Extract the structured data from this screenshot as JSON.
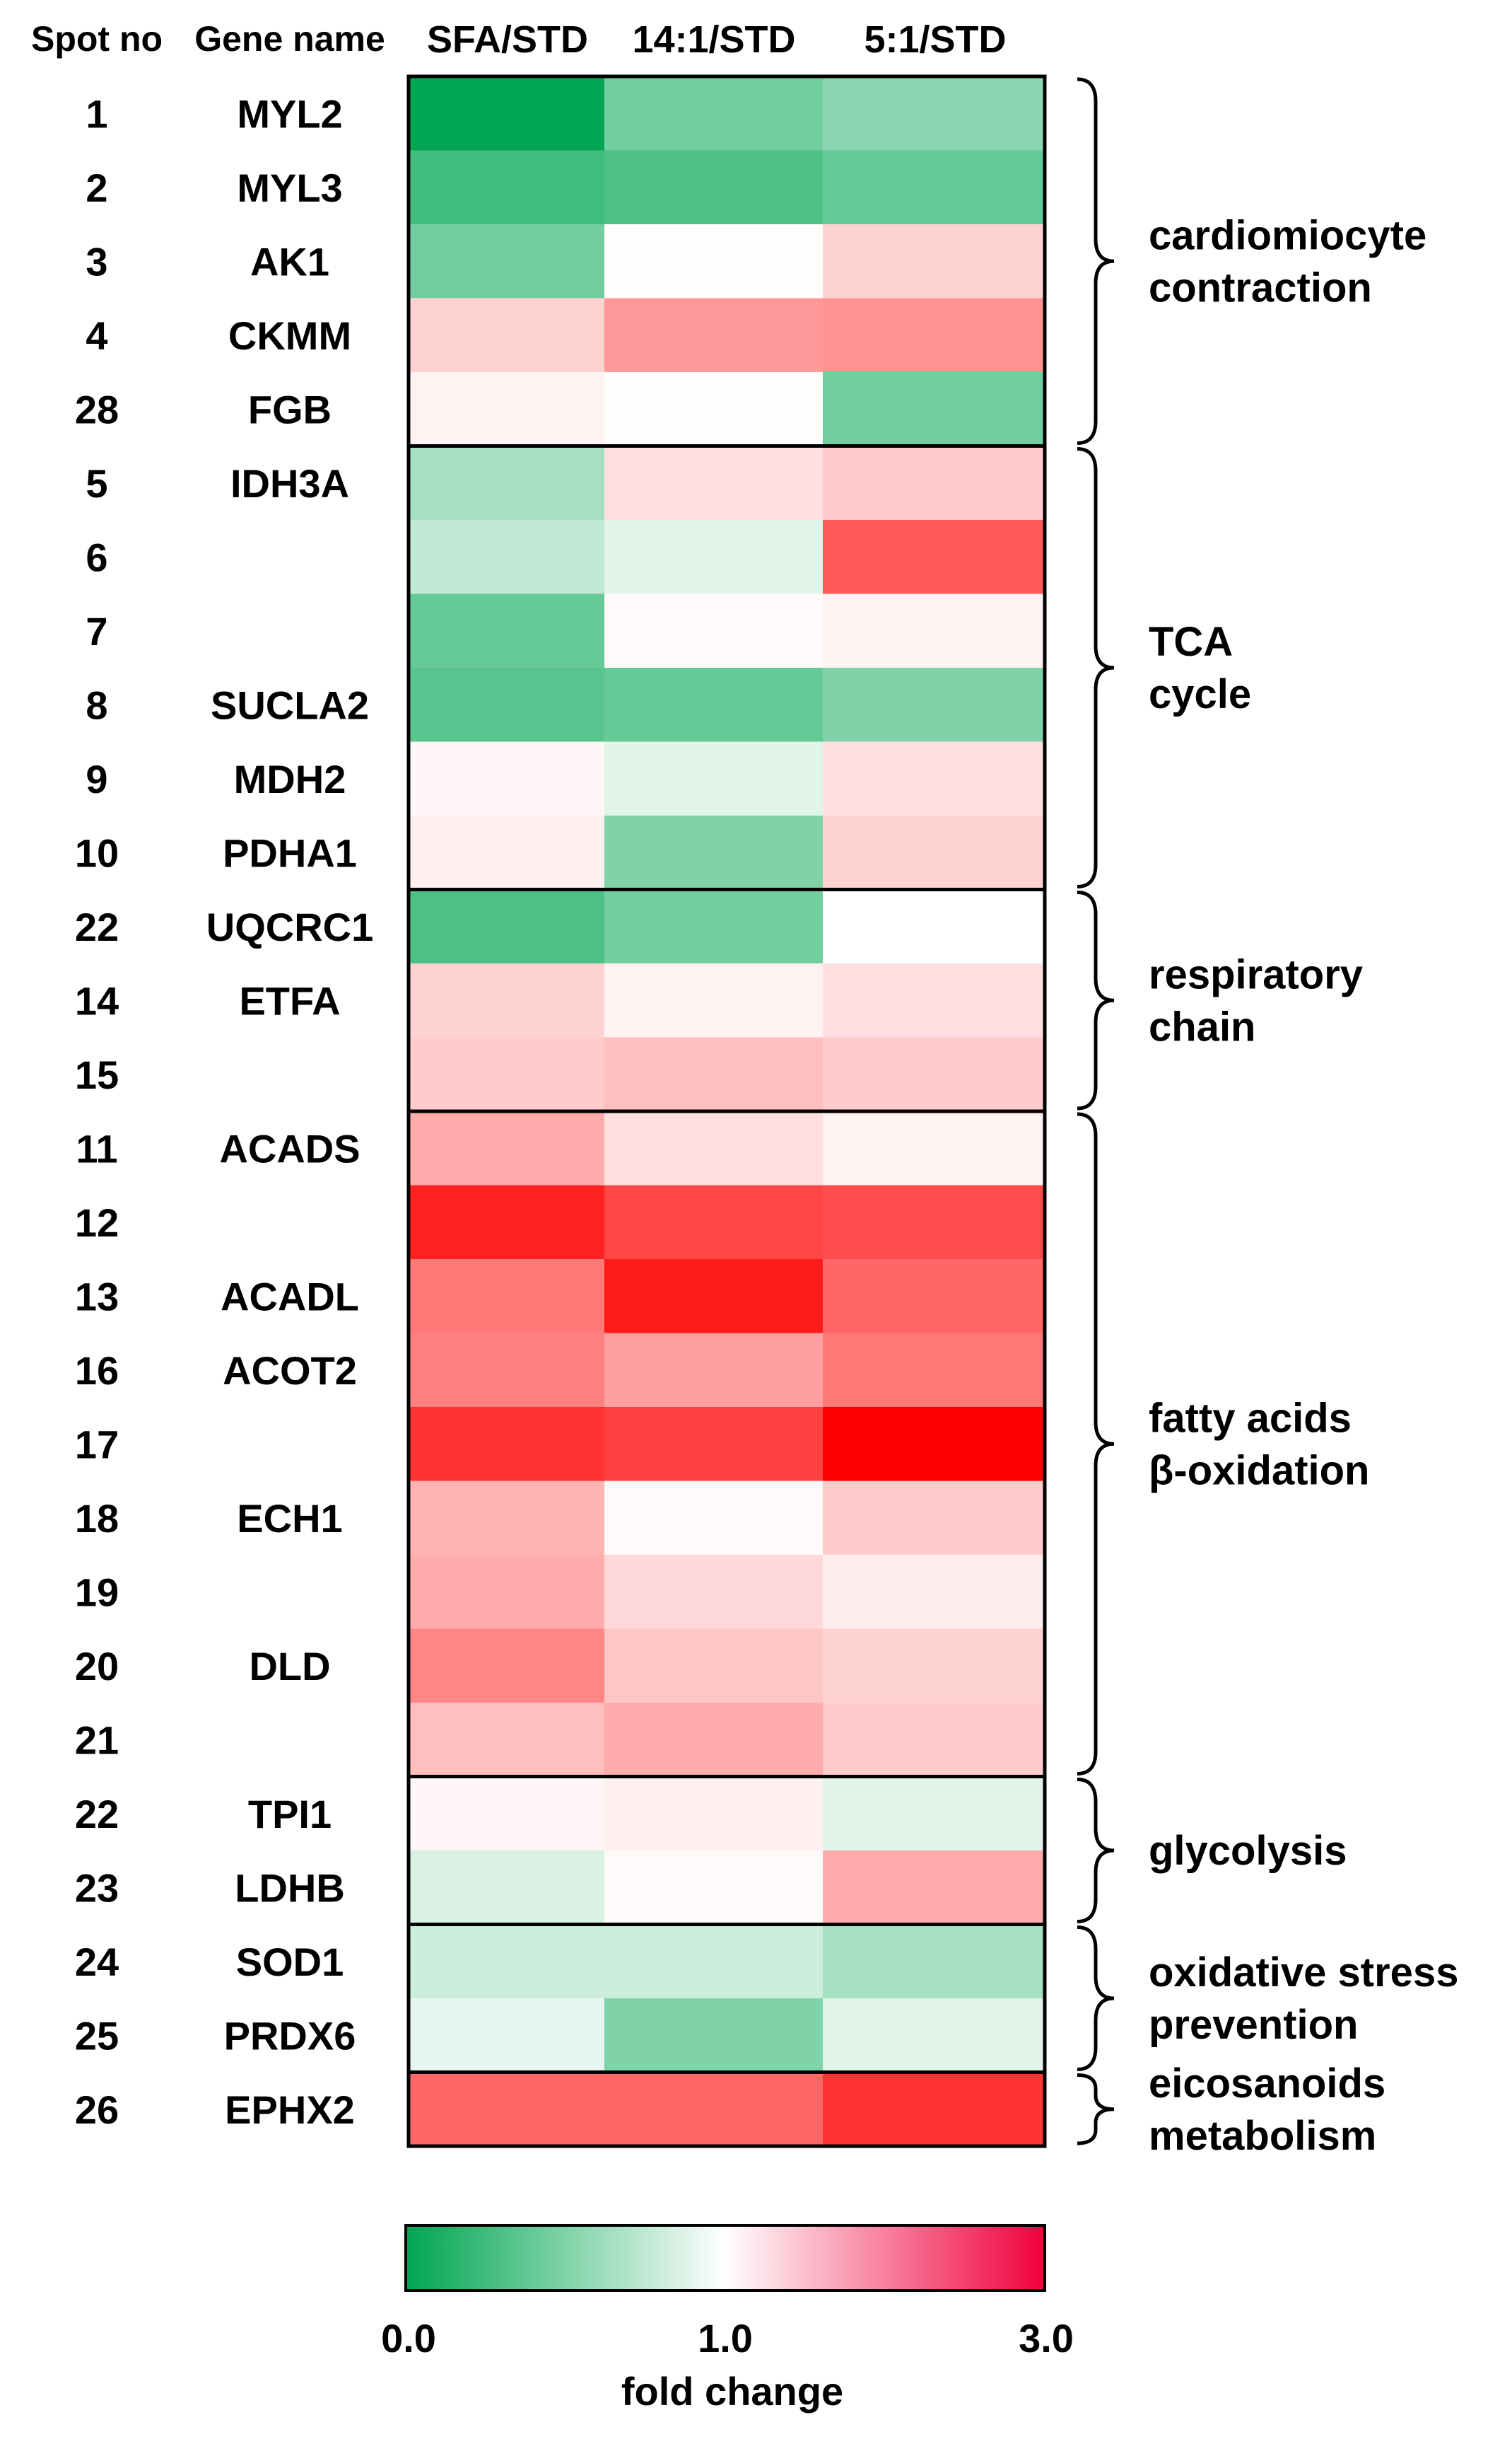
{
  "chart_data": {
    "type": "heatmap",
    "headers": {
      "spot": "Spot no",
      "gene": "Gene name"
    },
    "columns": [
      "SFA/STD",
      "14:1/STD",
      "5:1/STD"
    ],
    "rows": [
      {
        "spot": "1",
        "gene": "MYL2",
        "values": [
          0.0,
          0.45,
          0.55
        ]
      },
      {
        "spot": "2",
        "gene": "MYL3",
        "values": [
          0.25,
          0.3,
          0.4
        ]
      },
      {
        "spot": "3",
        "gene": "AK1",
        "values": [
          0.45,
          1.02,
          1.35
        ]
      },
      {
        "spot": "4",
        "gene": "CKMM",
        "values": [
          1.35,
          1.8,
          1.85
        ]
      },
      {
        "spot": "28",
        "gene": "FGB",
        "values": [
          1.1,
          1.02,
          0.45
        ]
      },
      {
        "spot": "5",
        "gene": "IDH3A",
        "values": [
          0.65,
          1.25,
          1.4
        ]
      },
      {
        "spot": "6",
        "gene": "",
        "values": [
          0.75,
          0.88,
          2.3
        ]
      },
      {
        "spot": "7",
        "gene": "",
        "values": [
          0.4,
          1.05,
          1.1
        ]
      },
      {
        "spot": "8",
        "gene": "SUCLA2",
        "values": [
          0.35,
          0.4,
          0.5
        ]
      },
      {
        "spot": "9",
        "gene": "MDH2",
        "values": [
          1.06,
          0.88,
          1.25
        ]
      },
      {
        "spot": "10",
        "gene": "PDHA1",
        "values": [
          1.12,
          0.5,
          1.35
        ]
      },
      {
        "spot": "22",
        "gene": "UQCRC1",
        "values": [
          0.3,
          0.45,
          1.0
        ]
      },
      {
        "spot": "14",
        "gene": "ETFA",
        "values": [
          1.35,
          1.1,
          1.25
        ]
      },
      {
        "spot": "15",
        "gene": "",
        "values": [
          1.4,
          1.5,
          1.4
        ]
      },
      {
        "spot": "11",
        "gene": "ACADS",
        "values": [
          1.65,
          1.25,
          1.1
        ]
      },
      {
        "spot": "12",
        "gene": "",
        "values": [
          2.75,
          2.45,
          2.4
        ]
      },
      {
        "spot": "13",
        "gene": "ACADL",
        "values": [
          2.05,
          2.8,
          2.2
        ]
      },
      {
        "spot": "16",
        "gene": "ACOT2",
        "values": [
          2.0,
          1.75,
          2.05
        ]
      },
      {
        "spot": "17",
        "gene": "",
        "values": [
          2.6,
          2.5,
          3.0
        ]
      },
      {
        "spot": "18",
        "gene": "ECH1",
        "values": [
          1.6,
          1.05,
          1.4
        ]
      },
      {
        "spot": "19",
        "gene": "",
        "values": [
          1.65,
          1.3,
          1.15
        ]
      },
      {
        "spot": "20",
        "gene": "DLD",
        "values": [
          1.95,
          1.45,
          1.35
        ]
      },
      {
        "spot": "21",
        "gene": "",
        "values": [
          1.5,
          1.65,
          1.4
        ]
      },
      {
        "spot": "22",
        "gene": "TPI1",
        "values": [
          1.06,
          1.12,
          0.88
        ]
      },
      {
        "spot": "23",
        "gene": "LDHB",
        "values": [
          0.85,
          1.05,
          1.65
        ]
      },
      {
        "spot": "24",
        "gene": "SOD1",
        "values": [
          0.8,
          0.8,
          0.65
        ]
      },
      {
        "spot": "25",
        "gene": "PRDX6",
        "values": [
          0.9,
          0.5,
          0.88
        ]
      },
      {
        "spot": "26",
        "gene": "EPHX2",
        "values": [
          2.2,
          2.2,
          2.6
        ]
      }
    ],
    "groups": [
      {
        "lines": [
          "cardiomiocyte",
          "contraction"
        ],
        "start": 0,
        "end": 4
      },
      {
        "lines": [
          "TCA",
          "cycle"
        ],
        "start": 5,
        "end": 10
      },
      {
        "lines": [
          "respiratory",
          "chain"
        ],
        "start": 11,
        "end": 13
      },
      {
        "lines": [
          "fatty acids",
          "β-oxidation"
        ],
        "start": 14,
        "end": 22
      },
      {
        "lines": [
          "glycolysis"
        ],
        "start": 23,
        "end": 24
      },
      {
        "lines": [
          "oxidative stress",
          "prevention"
        ],
        "start": 25,
        "end": 26
      },
      {
        "lines": [
          "eicosanoids",
          "metabolism"
        ],
        "start": 27,
        "end": 27
      }
    ],
    "colorbar": {
      "min": 0.0,
      "mid": 1.0,
      "max": 3.0,
      "tick_labels": [
        "0.0",
        "1.0",
        "3.0"
      ],
      "label": "fold change",
      "colors": {
        "low": "#00a651",
        "mid": "#ffffff",
        "high": "#ff0000",
        "bar_high": "#f0003c"
      }
    }
  }
}
